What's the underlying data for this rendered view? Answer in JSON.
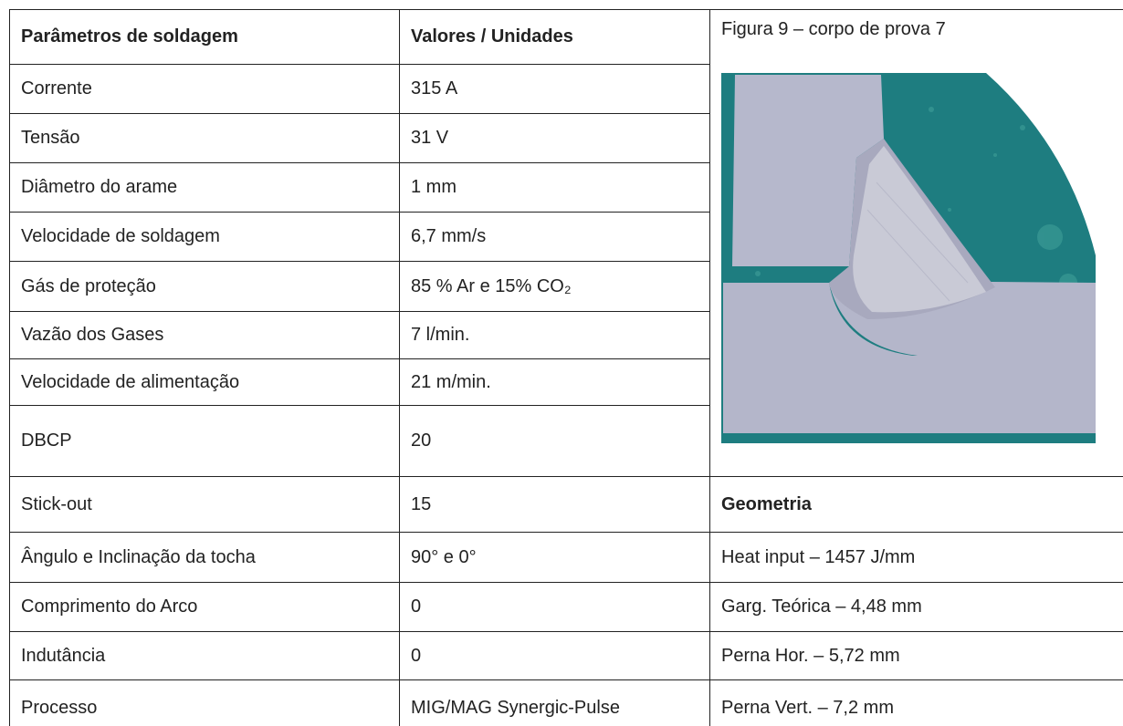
{
  "table": {
    "header": [
      "Parâmetros de soldagem",
      "Valores / Unidades"
    ],
    "rows": [
      [
        "Corrente",
        "315 A"
      ],
      [
        "Tensão",
        "31 V"
      ],
      [
        "Diâmetro do arame",
        "1 mm"
      ],
      [
        "Velocidade de soldagem",
        "6,7 mm/s"
      ],
      [
        "Gás de proteção",
        "85 % Ar e 15% CO₂"
      ],
      [
        "Vazão dos Gases",
        "7 l/min."
      ],
      [
        "Velocidade de alimentação",
        "21 m/min."
      ],
      [
        "DBCP",
        "20"
      ],
      [
        "Stick-out",
        "15"
      ],
      [
        "Ângulo e Inclinação da tocha",
        "90° e 0°"
      ],
      [
        "Comprimento do Arco",
        "0"
      ],
      [
        "Indutância",
        "0"
      ],
      [
        "Processo",
        "MIG/MAG Synergic-Pulse"
      ]
    ]
  },
  "figure": {
    "caption": "Figura 9 – corpo de prova 7"
  },
  "geometry": {
    "title": "Geometria",
    "items": [
      "Heat input – 1457 J/mm",
      "Garg. Teórica – 4,48 mm",
      "Perna Hor. – 5,72 mm",
      "Perna Vert. – 7,2 mm"
    ]
  }
}
